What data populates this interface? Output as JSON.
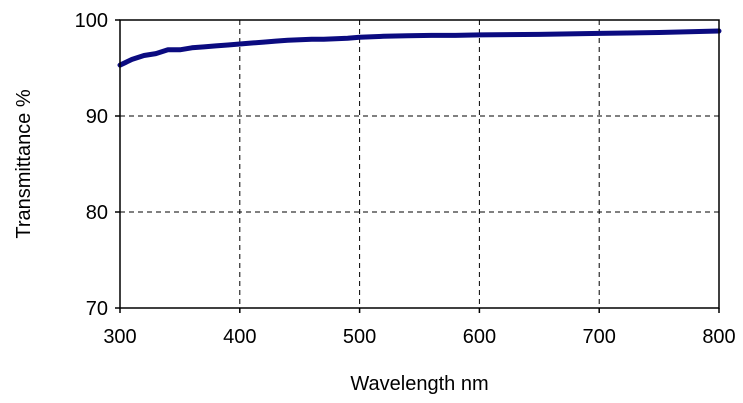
{
  "chart_data": {
    "type": "line",
    "title": "",
    "xlabel": "Wavelength nm",
    "ylabel": "Transmittance %",
    "xlim": [
      300,
      800
    ],
    "ylim": [
      70,
      100
    ],
    "x_ticks": [
      "300",
      "400",
      "500",
      "600",
      "700",
      "800"
    ],
    "y_ticks": [
      "70",
      "80",
      "90",
      "100"
    ],
    "grid": true,
    "grid_style": "dashed",
    "legend": "none",
    "colors": {
      "line": "#0b0b80",
      "grid": "#000000",
      "axes": "#000000"
    },
    "series": [
      {
        "x": [
          300,
          310,
          320,
          330,
          340,
          350,
          360,
          370,
          380,
          390,
          400,
          410,
          420,
          430,
          440,
          450,
          460,
          470,
          480,
          490,
          500,
          520,
          540,
          560,
          580,
          600,
          650,
          700,
          750,
          800
        ],
        "values": [
          95.3,
          95.9,
          96.3,
          96.5,
          96.9,
          96.9,
          97.1,
          97.2,
          97.3,
          97.4,
          97.5,
          97.6,
          97.7,
          97.8,
          97.9,
          97.95,
          98.0,
          98.0,
          98.05,
          98.1,
          98.2,
          98.3,
          98.35,
          98.4,
          98.4,
          98.45,
          98.5,
          98.6,
          98.7,
          98.85
        ]
      }
    ]
  }
}
